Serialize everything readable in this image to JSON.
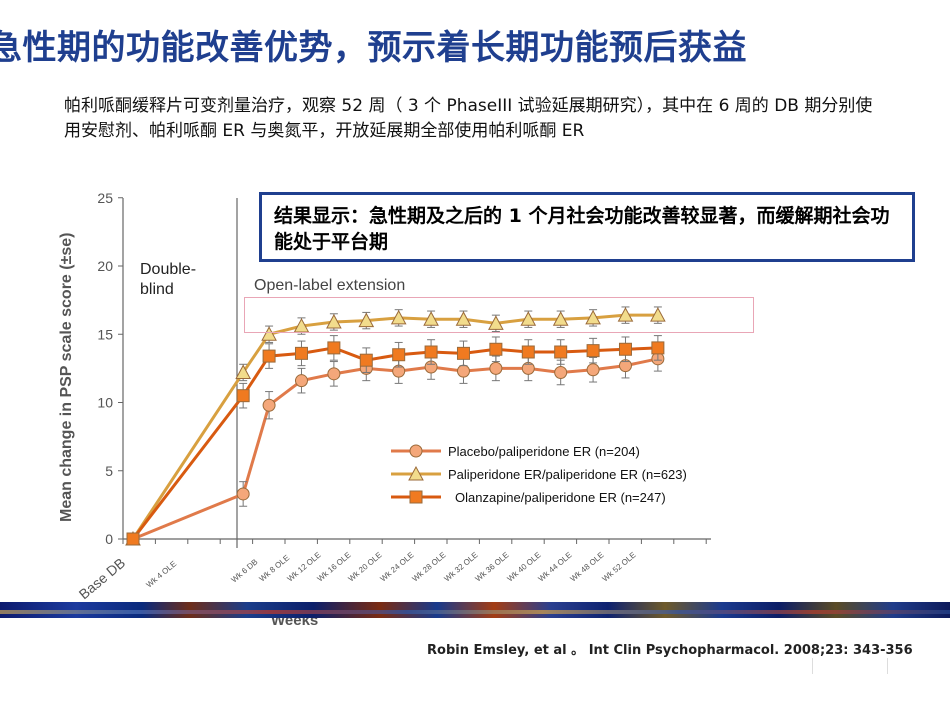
{
  "slide": {
    "title": "急性期的功能改善优势，预示着长期功能预后获益",
    "intro": "帕利哌酮缓释片可变剂量治疗，观察 52 周（ 3 个 PhaseIII 试验延展期研究），其中在 6 周的 DB 期分别使用安慰剂、帕利哌酮 ER 与奥氮平，开放延展期全部使用帕利哌酮 ER",
    "callout": "结果显示：急性期及之后的 1 个月社会功能改善较显著，而缓解期社会功能处于平台期",
    "citation": "Robin Emsley, et al 。 Int Clin Psychopharmacol. 2008;23: 343-356"
  },
  "chart_data": {
    "type": "line",
    "ylabel": "Mean change in PSP scale score (±se)",
    "xlabel": "Weeks",
    "ylim": [
      0,
      25
    ],
    "yticks": [
      0,
      5,
      10,
      15,
      20,
      25
    ],
    "phase_labels": {
      "double_blind": "Double-\nblind",
      "open_label": "Open-label extension"
    },
    "categories": [
      "Base DB",
      "Wk 4 OLE",
      "Wk 6 DB",
      "Wk 8 OLE",
      "Wk 12 OLE",
      "Wk 16 OLE",
      "Wk 20 OLE",
      "Wk 24 OLE",
      "Wk 28 OLE",
      "Wk 32 OLE",
      "Wk 36 OLE",
      "Wk 40 OLE",
      "Wk 44 OLE",
      "Wk 48 OLE",
      "Wk 52 OLE"
    ],
    "series": [
      {
        "name": "Placebo/paliperidone ER (n=204)",
        "marker": "circle",
        "color": "#f4a77a",
        "line_color": "#e07a4a",
        "points": [
          [
            0,
            0
          ],
          [
            3.4,
            3.3
          ],
          [
            4.2,
            9.8
          ],
          [
            5.2,
            11.6
          ],
          [
            6.2,
            12.1
          ],
          [
            7.2,
            12.5
          ],
          [
            8.2,
            12.3
          ],
          [
            9.2,
            12.6
          ],
          [
            10.2,
            12.3
          ],
          [
            11.2,
            12.5
          ],
          [
            12.2,
            12.5
          ],
          [
            13.2,
            12.2
          ],
          [
            14.2,
            12.4
          ],
          [
            15.2,
            12.7
          ],
          [
            16.2,
            13.2
          ]
        ],
        "error": [
          0.4,
          0.9,
          1.0,
          0.9,
          0.9,
          0.9,
          0.9,
          0.9,
          0.9,
          0.9,
          0.9,
          0.9,
          0.9,
          0.9,
          0.9
        ]
      },
      {
        "name": "Paliperidone ER/paliperidone ER (n=623)",
        "marker": "triangle",
        "color": "#f2dc8c",
        "line_color": "#d8a040",
        "points": [
          [
            0,
            0
          ],
          [
            3.4,
            12.2
          ],
          [
            4.2,
            15.0
          ],
          [
            5.2,
            15.6
          ],
          [
            6.2,
            15.9
          ],
          [
            7.2,
            16.0
          ],
          [
            8.2,
            16.2
          ],
          [
            9.2,
            16.1
          ],
          [
            10.2,
            16.1
          ],
          [
            11.2,
            15.8
          ],
          [
            12.2,
            16.1
          ],
          [
            13.2,
            16.1
          ],
          [
            14.2,
            16.2
          ],
          [
            15.2,
            16.4
          ],
          [
            16.2,
            16.4
          ]
        ],
        "error": [
          0.4,
          0.6,
          0.6,
          0.6,
          0.6,
          0.6,
          0.6,
          0.6,
          0.6,
          0.6,
          0.6,
          0.6,
          0.6,
          0.6,
          0.6
        ]
      },
      {
        "name": "Olanzapine/paliperidone ER (n=247)",
        "marker": "square",
        "color": "#f07a20",
        "line_color": "#d85a10",
        "points": [
          [
            0,
            0
          ],
          [
            3.4,
            10.5
          ],
          [
            4.2,
            13.4
          ],
          [
            5.2,
            13.6
          ],
          [
            6.2,
            14.0
          ],
          [
            7.2,
            13.1
          ],
          [
            8.2,
            13.5
          ],
          [
            9.2,
            13.7
          ],
          [
            10.2,
            13.6
          ],
          [
            11.2,
            13.9
          ],
          [
            12.2,
            13.7
          ],
          [
            13.2,
            13.7
          ],
          [
            14.2,
            13.8
          ],
          [
            15.2,
            13.9
          ],
          [
            16.2,
            14.0
          ]
        ],
        "error": [
          0.4,
          0.9,
          0.9,
          0.9,
          0.9,
          0.9,
          0.9,
          0.9,
          0.9,
          0.9,
          0.9,
          0.9,
          0.9,
          0.9,
          0.9
        ]
      }
    ]
  }
}
